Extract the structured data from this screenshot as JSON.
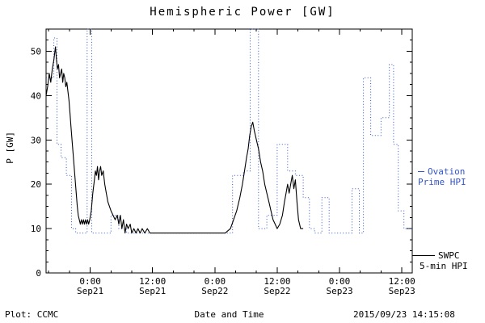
{
  "title": "Hemispheric Power [GW]",
  "ylabel": "P [GW]",
  "footer": {
    "plot_credit": "Plot: CCMC",
    "xlabel": "Date and Time",
    "timestamp": "2015/09/23 14:15:08"
  },
  "legend": {
    "ovation": {
      "line1": "Ovation",
      "line2": "Prime HPI",
      "color": "#3355cc"
    },
    "swpc": {
      "line1": "SWPC",
      "line2": "5-min HPI",
      "color": "#000000"
    }
  },
  "chart_data": {
    "type": "line",
    "title": "Hemispheric Power [GW]",
    "xlabel": "Date and Time",
    "ylabel": "P [GW]",
    "x_unit": "hours since 2015-09-21 00:00",
    "xlim": [
      -8.5,
      62
    ],
    "ylim": [
      0,
      55
    ],
    "yticks": [
      0,
      10,
      20,
      30,
      40,
      50
    ],
    "y_minor_step": 2.5,
    "x_minor_step": 4,
    "grid": false,
    "legend_position": "right-outside",
    "xticks": [
      {
        "t": 0,
        "line1": "0:00",
        "line2": "Sep21"
      },
      {
        "t": 12,
        "line1": "12:00",
        "line2": "Sep21"
      },
      {
        "t": 24,
        "line1": "0:00",
        "line2": "Sep22"
      },
      {
        "t": 36,
        "line1": "12:00",
        "line2": "Sep22"
      },
      {
        "t": 48,
        "line1": "0:00",
        "line2": "Sep23"
      },
      {
        "t": 60,
        "line1": "12:00",
        "line2": "Sep23"
      }
    ],
    "series": [
      {
        "id": "ovation",
        "name": "Ovation Prime HPI",
        "color": "#3355cc",
        "line_style": "dotted",
        "step": true,
        "points": [
          [
            -8.5,
            44
          ],
          [
            -7.0,
            53
          ],
          [
            -6.4,
            29
          ],
          [
            -5.6,
            26
          ],
          [
            -4.6,
            22
          ],
          [
            -3.6,
            10
          ],
          [
            -2.8,
            9
          ],
          [
            -0.6,
            55
          ],
          [
            0.3,
            9
          ],
          [
            4.0,
            13
          ],
          [
            5.5,
            10
          ],
          [
            7.0,
            9
          ],
          [
            27.4,
            22
          ],
          [
            29.5,
            23
          ],
          [
            30.8,
            55
          ],
          [
            32.4,
            10
          ],
          [
            34.0,
            13
          ],
          [
            36.0,
            29
          ],
          [
            38.0,
            23
          ],
          [
            39.5,
            22
          ],
          [
            41.0,
            17
          ],
          [
            42.2,
            10
          ],
          [
            43.2,
            9
          ],
          [
            44.6,
            17
          ],
          [
            46.0,
            9
          ],
          [
            50.4,
            19
          ],
          [
            51.8,
            9
          ],
          [
            52.6,
            44
          ],
          [
            54.0,
            31
          ],
          [
            56.0,
            35
          ],
          [
            57.6,
            47
          ],
          [
            58.4,
            29
          ],
          [
            59.3,
            14
          ],
          [
            60.4,
            10
          ],
          [
            62.0,
            10
          ]
        ]
      },
      {
        "id": "swpc",
        "name": "SWPC 5-min HPI",
        "color": "#000000",
        "line_style": "solid",
        "step": false,
        "points": [
          [
            -8.5,
            40
          ],
          [
            -8.2,
            42
          ],
          [
            -7.9,
            45
          ],
          [
            -7.6,
            43
          ],
          [
            -7.3,
            46
          ],
          [
            -7.0,
            48
          ],
          [
            -6.7,
            51
          ],
          [
            -6.5,
            48
          ],
          [
            -6.3,
            46
          ],
          [
            -6.1,
            47
          ],
          [
            -5.9,
            44
          ],
          [
            -5.7,
            45
          ],
          [
            -5.5,
            46
          ],
          [
            -5.3,
            43
          ],
          [
            -5.1,
            45
          ],
          [
            -4.9,
            44
          ],
          [
            -4.7,
            42
          ],
          [
            -4.5,
            43
          ],
          [
            -4.3,
            41
          ],
          [
            -4.1,
            39
          ],
          [
            -3.9,
            36
          ],
          [
            -3.7,
            33
          ],
          [
            -3.5,
            30
          ],
          [
            -3.3,
            27
          ],
          [
            -3.1,
            24
          ],
          [
            -2.9,
            21
          ],
          [
            -2.7,
            18
          ],
          [
            -2.5,
            15
          ],
          [
            -2.3,
            13
          ],
          [
            -2.1,
            12
          ],
          [
            -1.9,
            11
          ],
          [
            -1.7,
            12
          ],
          [
            -1.5,
            11
          ],
          [
            -1.3,
            12
          ],
          [
            -1.1,
            11
          ],
          [
            -0.9,
            12
          ],
          [
            -0.7,
            11
          ],
          [
            -0.5,
            12
          ],
          [
            -0.3,
            11
          ],
          [
            -0.1,
            12
          ],
          [
            0.2,
            14
          ],
          [
            0.5,
            18
          ],
          [
            0.8,
            21
          ],
          [
            1.0,
            23
          ],
          [
            1.2,
            22
          ],
          [
            1.4,
            24
          ],
          [
            1.6,
            21
          ],
          [
            1.8,
            23
          ],
          [
            2.0,
            24
          ],
          [
            2.2,
            22
          ],
          [
            2.5,
            23
          ],
          [
            2.8,
            20
          ],
          [
            3.1,
            18
          ],
          [
            3.4,
            16
          ],
          [
            3.7,
            15
          ],
          [
            4.0,
            14
          ],
          [
            4.4,
            13
          ],
          [
            4.8,
            12
          ],
          [
            5.2,
            13
          ],
          [
            5.5,
            11
          ],
          [
            5.8,
            13
          ],
          [
            6.1,
            10
          ],
          [
            6.4,
            12
          ],
          [
            6.7,
            9
          ],
          [
            7.0,
            11
          ],
          [
            7.3,
            10
          ],
          [
            7.7,
            11
          ],
          [
            8.0,
            9
          ],
          [
            8.4,
            10
          ],
          [
            8.8,
            9
          ],
          [
            9.2,
            10
          ],
          [
            9.6,
            9
          ],
          [
            10.0,
            10
          ],
          [
            10.5,
            9
          ],
          [
            11.0,
            10
          ],
          [
            11.5,
            9
          ],
          [
            12.0,
            9
          ],
          [
            14,
            9
          ],
          [
            16,
            9
          ],
          [
            18,
            9
          ],
          [
            20,
            9
          ],
          [
            22,
            9
          ],
          [
            24,
            9
          ],
          [
            26,
            9
          ],
          [
            27.0,
            10
          ],
          [
            27.6,
            12
          ],
          [
            28.2,
            14
          ],
          [
            28.8,
            17
          ],
          [
            29.3,
            20
          ],
          [
            29.7,
            23
          ],
          [
            30.1,
            26
          ],
          [
            30.4,
            28
          ],
          [
            30.7,
            31
          ],
          [
            31.0,
            33
          ],
          [
            31.3,
            34
          ],
          [
            31.6,
            32
          ],
          [
            32.0,
            30
          ],
          [
            32.4,
            28
          ],
          [
            32.8,
            25
          ],
          [
            33.2,
            23
          ],
          [
            33.6,
            20
          ],
          [
            34.0,
            18
          ],
          [
            34.4,
            16
          ],
          [
            34.8,
            14
          ],
          [
            35.2,
            12
          ],
          [
            35.6,
            11
          ],
          [
            36.0,
            10
          ],
          [
            36.5,
            11
          ],
          [
            37.0,
            13
          ],
          [
            37.4,
            16
          ],
          [
            37.7,
            18
          ],
          [
            38.0,
            20
          ],
          [
            38.3,
            18
          ],
          [
            38.6,
            20
          ],
          [
            38.9,
            22
          ],
          [
            39.2,
            19
          ],
          [
            39.5,
            21
          ],
          [
            39.8,
            16
          ],
          [
            40.1,
            12
          ],
          [
            40.5,
            10
          ],
          [
            41.0,
            10
          ]
        ]
      }
    ]
  }
}
